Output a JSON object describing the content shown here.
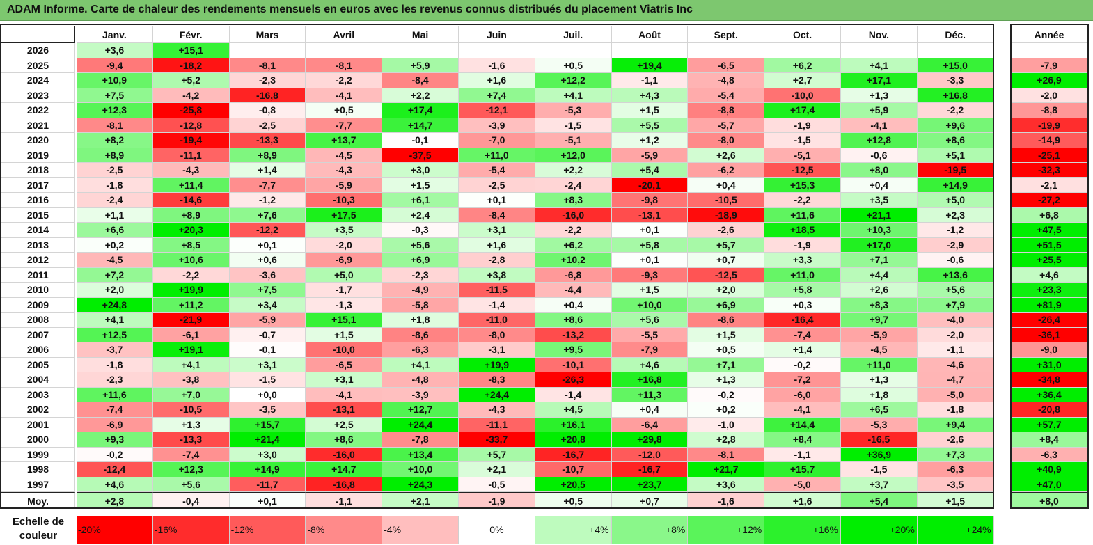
{
  "title": "ADAM Informe. Carte de chaleur des rendements mensuels en euros avec les revenus connus distribués du placement Viatris Inc",
  "chart_data": {
    "type": "heatmap",
    "title": "ADAM Informe. Carte de chaleur des rendements mensuels en euros avec les revenus connus distribués du placement Viatris Inc",
    "months": [
      "Janv.",
      "Févr.",
      "Mars",
      "Avril",
      "Mai",
      "Juin",
      "Juil.",
      "Août",
      "Sept.",
      "Oct.",
      "Nov.",
      "Déc."
    ],
    "year_header": "Année",
    "rows": [
      {
        "year": "2026",
        "values": [
          "+3,6",
          "+15,1",
          "",
          "",
          "",
          "",
          "",
          "",
          "",
          "",
          "",
          ""
        ],
        "annual": ""
      },
      {
        "year": "2025",
        "values": [
          "-9,4",
          "-18,2",
          "-8,1",
          "-8,1",
          "+5,9",
          "-1,6",
          "+0,5",
          "+19,4",
          "-6,5",
          "+6,2",
          "+4,1",
          "+15,0"
        ],
        "annual": "-7,9"
      },
      {
        "year": "2024",
        "values": [
          "+10,9",
          "+5,2",
          "-2,3",
          "-2,2",
          "-8,4",
          "+1,6",
          "+12,2",
          "-1,1",
          "-4,8",
          "+2,7",
          "+17,1",
          "-3,3"
        ],
        "annual": "+26,9"
      },
      {
        "year": "2023",
        "values": [
          "+7,5",
          "-4,2",
          "-16,8",
          "-4,1",
          "+2,2",
          "+7,4",
          "+4,1",
          "+4,3",
          "-5,4",
          "-10,0",
          "+1,3",
          "+16,8"
        ],
        "annual": "-2,0"
      },
      {
        "year": "2022",
        "values": [
          "+12,3",
          "-25,8",
          "-0,8",
          "+0,5",
          "+17,4",
          "-12,1",
          "-5,3",
          "+1,5",
          "-8,8",
          "+17,4",
          "+5,9",
          "-2,2"
        ],
        "annual": "-8,8"
      },
      {
        "year": "2021",
        "values": [
          "-8,1",
          "-12,8",
          "-2,5",
          "-7,7",
          "+14,7",
          "-3,9",
          "-1,5",
          "+5,5",
          "-5,7",
          "-1,9",
          "-4,1",
          "+9,6"
        ],
        "annual": "-19,9"
      },
      {
        "year": "2020",
        "values": [
          "+8,2",
          "-19,4",
          "-13,3",
          "+13,7",
          "-0,1",
          "-7,0",
          "-5,1",
          "+1,2",
          "-8,0",
          "-1,5",
          "+12,8",
          "+8,6"
        ],
        "annual": "-14,9"
      },
      {
        "year": "2019",
        "values": [
          "+8,9",
          "-11,1",
          "+8,9",
          "-4,5",
          "-37,5",
          "+11,0",
          "+12,0",
          "-5,9",
          "+2,6",
          "-5,1",
          "-0,6",
          "+5,1"
        ],
        "annual": "-25,1"
      },
      {
        "year": "2018",
        "values": [
          "-2,5",
          "-4,3",
          "+1,4",
          "-4,3",
          "+3,0",
          "-5,4",
          "+2,2",
          "+5,4",
          "-6,2",
          "-12,5",
          "+8,0",
          "-19,5"
        ],
        "annual": "-32,3"
      },
      {
        "year": "2017",
        "values": [
          "-1,8",
          "+11,4",
          "-7,7",
          "-5,9",
          "+1,5",
          "-2,5",
          "-2,4",
          "-20,1",
          "+0,4",
          "+15,3",
          "+0,4",
          "+14,9"
        ],
        "annual": "-2,1"
      },
      {
        "year": "2016",
        "values": [
          "-2,4",
          "-14,6",
          "-1,2",
          "-10,3",
          "+6,1",
          "+0,1",
          "+8,3",
          "-9,8",
          "-10,5",
          "-2,2",
          "+3,5",
          "+5,0"
        ],
        "annual": "-27,2"
      },
      {
        "year": "2015",
        "values": [
          "+1,1",
          "+8,9",
          "+7,6",
          "+17,5",
          "+2,4",
          "-8,4",
          "-16,0",
          "-13,1",
          "-18,9",
          "+11,6",
          "+21,1",
          "+2,3"
        ],
        "annual": "+6,8"
      },
      {
        "year": "2014",
        "values": [
          "+6,6",
          "+20,3",
          "-12,2",
          "+3,5",
          "-0,3",
          "+3,1",
          "-2,2",
          "+0,1",
          "-2,6",
          "+18,5",
          "+10,3",
          "-1,2"
        ],
        "annual": "+47,5"
      },
      {
        "year": "2013",
        "values": [
          "+0,2",
          "+8,5",
          "+0,1",
          "-2,0",
          "+5,6",
          "+1,6",
          "+6,2",
          "+5,8",
          "+5,7",
          "-1,9",
          "+17,0",
          "-2,9"
        ],
        "annual": "+51,5"
      },
      {
        "year": "2012",
        "values": [
          "-4,5",
          "+10,6",
          "+0,6",
          "-6,9",
          "+6,9",
          "-2,8",
          "+10,2",
          "+0,1",
          "+0,7",
          "+3,3",
          "+7,1",
          "-0,6"
        ],
        "annual": "+25,5"
      },
      {
        "year": "2011",
        "values": [
          "+7,2",
          "-2,2",
          "-3,6",
          "+5,0",
          "-2,3",
          "+3,8",
          "-6,8",
          "-9,3",
          "-12,5",
          "+11,0",
          "+4,4",
          "+13,6"
        ],
        "annual": "+4,6"
      },
      {
        "year": "2010",
        "values": [
          "+2,0",
          "+19,9",
          "+7,5",
          "-1,7",
          "-4,9",
          "-11,5",
          "-4,4",
          "+1,5",
          "+2,0",
          "+5,8",
          "+2,6",
          "+5,6"
        ],
        "annual": "+23,3"
      },
      {
        "year": "2009",
        "values": [
          "+24,8",
          "+11,2",
          "+3,4",
          "-1,3",
          "-5,8",
          "-1,4",
          "+0,4",
          "+10,0",
          "+6,9",
          "+0,3",
          "+8,3",
          "+7,9"
        ],
        "annual": "+81,9"
      },
      {
        "year": "2008",
        "values": [
          "+4,1",
          "-21,9",
          "-5,9",
          "+15,1",
          "+1,8",
          "-11,0",
          "+8,6",
          "+5,6",
          "-8,6",
          "-16,4",
          "+9,7",
          "-4,0"
        ],
        "annual": "-26,4"
      },
      {
        "year": "2007",
        "values": [
          "+12,5",
          "-6,1",
          "-0,7",
          "+1,5",
          "-8,6",
          "-8,0",
          "-13,2",
          "-5,5",
          "+1,5",
          "-7,4",
          "-5,9",
          "-2,0"
        ],
        "annual": "-36,1"
      },
      {
        "year": "2006",
        "values": [
          "-3,7",
          "+19,1",
          "-0,1",
          "-10,0",
          "-6,3",
          "-3,1",
          "+9,5",
          "-7,9",
          "+0,5",
          "+1,4",
          "-4,5",
          "-1,1"
        ],
        "annual": "-9,0"
      },
      {
        "year": "2005",
        "values": [
          "-1,8",
          "+4,1",
          "+3,1",
          "-6,5",
          "+4,1",
          "+19,9",
          "-10,1",
          "+4,6",
          "+7,1",
          "-0,2",
          "+11,0",
          "-4,6"
        ],
        "annual": "+31,0"
      },
      {
        "year": "2004",
        "values": [
          "-2,3",
          "-3,8",
          "-1,5",
          "+3,1",
          "-4,8",
          "-8,3",
          "-26,3",
          "+16,8",
          "+1,3",
          "-7,2",
          "+1,3",
          "-4,7"
        ],
        "annual": "-34,8"
      },
      {
        "year": "2003",
        "values": [
          "+11,6",
          "+7,0",
          "+0,0",
          "-4,1",
          "-3,9",
          "+24,4",
          "-1,4",
          "+11,3",
          "-0,2",
          "-6,0",
          "+1,8",
          "-5,0"
        ],
        "annual": "+36,4"
      },
      {
        "year": "2002",
        "values": [
          "-7,4",
          "-10,5",
          "-3,5",
          "-13,1",
          "+12,7",
          "-4,3",
          "+4,5",
          "+0,4",
          "+0,2",
          "-4,1",
          "+6,5",
          "-1,8"
        ],
        "annual": "-20,8"
      },
      {
        "year": "2001",
        "values": [
          "-6,9",
          "+1,3",
          "+15,7",
          "+2,5",
          "+24,4",
          "-11,1",
          "+16,1",
          "-6,4",
          "-1,0",
          "+14,4",
          "-5,3",
          "+9,4"
        ],
        "annual": "+57,7"
      },
      {
        "year": "2000",
        "values": [
          "+9,3",
          "-13,3",
          "+21,4",
          "+8,6",
          "-7,8",
          "-33,7",
          "+20,8",
          "+29,8",
          "+2,8",
          "+8,4",
          "-16,5",
          "-2,6"
        ],
        "annual": "+8,4"
      },
      {
        "year": "1999",
        "values": [
          "-0,2",
          "-7,4",
          "+3,0",
          "-16,0",
          "+13,4",
          "+5,7",
          "-16,7",
          "-12,0",
          "-8,1",
          "-1,1",
          "+36,9",
          "+7,3"
        ],
        "annual": "-6,3"
      },
      {
        "year": "1998",
        "values": [
          "-12,4",
          "+12,3",
          "+14,9",
          "+14,7",
          "+10,0",
          "+2,1",
          "-10,7",
          "-16,7",
          "+21,7",
          "+15,7",
          "-1,5",
          "-6,3"
        ],
        "annual": "+40,9"
      },
      {
        "year": "1997",
        "values": [
          "+4,6",
          "+5,6",
          "-11,7",
          "-16,8",
          "+24,3",
          "-0,5",
          "+20,5",
          "+23,7",
          "+3,6",
          "-5,0",
          "+3,7",
          "-3,5"
        ],
        "annual": "+47,0"
      }
    ],
    "average": {
      "label": "Moy.",
      "values": [
        "+2,8",
        "-0,4",
        "+0,1",
        "-1,1",
        "+2,1",
        "-1,9",
        "+0,5",
        "+0,7",
        "-1,6",
        "+1,6",
        "+5,4",
        "+1,5"
      ],
      "annual": "+8,0"
    },
    "legend": {
      "label": "Echelle de couleur",
      "entries": [
        {
          "text": "-20%",
          "value": -20
        },
        {
          "text": "-16%",
          "value": -16
        },
        {
          "text": "-12%",
          "value": -12
        },
        {
          "text": "-8%",
          "value": -8
        },
        {
          "text": "-4%",
          "value": -4
        },
        {
          "text": "0%",
          "value": 0
        },
        {
          "text": "+4%",
          "value": 4
        },
        {
          "text": "+8%",
          "value": 8
        },
        {
          "text": "+12%",
          "value": 12
        },
        {
          "text": "+16%",
          "value": 16
        },
        {
          "text": "+20%",
          "value": 20
        },
        {
          "text": "+24%",
          "value": 24
        }
      ]
    },
    "colors": {
      "negative": "#ff0000",
      "neutral": "#ffffff",
      "positive": "#00ee00",
      "title_bg": "#7dc76f"
    }
  }
}
